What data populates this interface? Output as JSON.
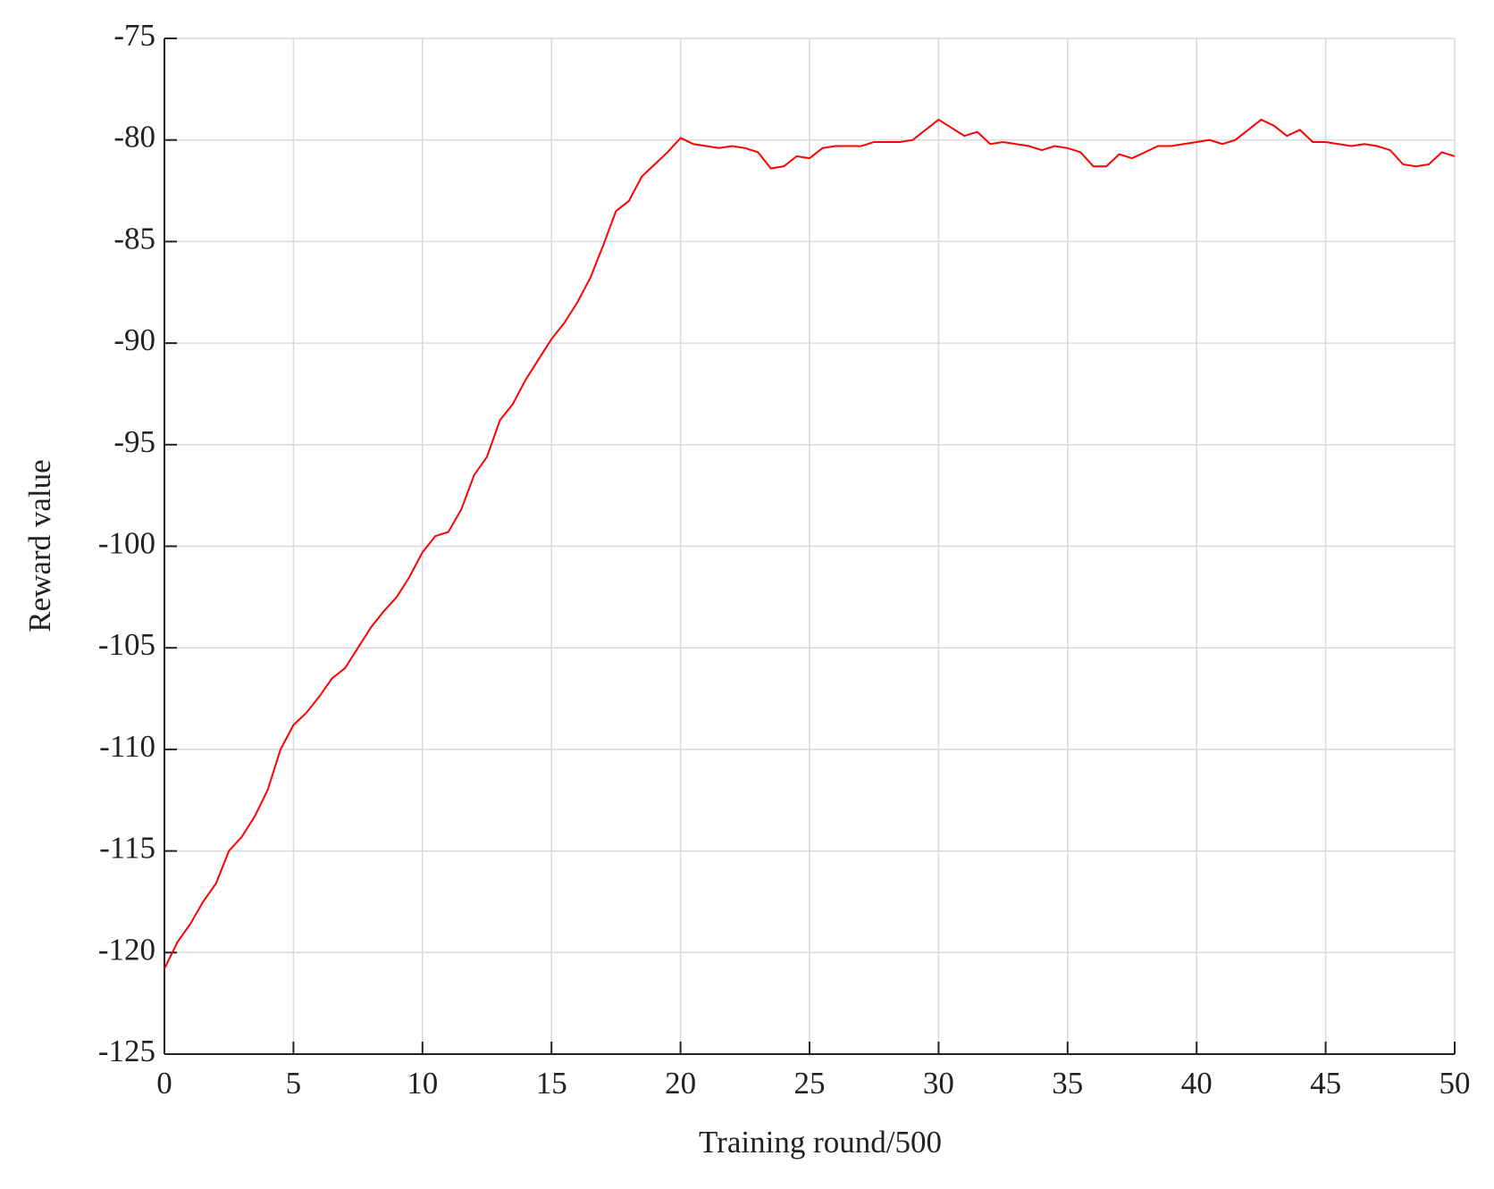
{
  "chart_data": {
    "type": "line",
    "xlabel": "Training round/500",
    "ylabel": "Reward value",
    "x": [
      0,
      0.5,
      1,
      1.5,
      2,
      2.5,
      3,
      3.5,
      4,
      4.5,
      5,
      5.5,
      6,
      6.5,
      7,
      7.5,
      8,
      8.5,
      9,
      9.5,
      10,
      10.5,
      11,
      11.5,
      12,
      12.5,
      13,
      13.5,
      14,
      14.5,
      15,
      15.5,
      16,
      16.5,
      17,
      17.5,
      18,
      18.5,
      19,
      19.5,
      20,
      20.5,
      21,
      21.5,
      22,
      22.5,
      23,
      23.5,
      24,
      24.5,
      25,
      25.5,
      26,
      26.5,
      27,
      27.5,
      28,
      28.5,
      29,
      29.5,
      30,
      30.5,
      31,
      31.5,
      32,
      32.5,
      33,
      33.5,
      34,
      34.5,
      35,
      35.5,
      36,
      36.5,
      37,
      37.5,
      38,
      38.5,
      39,
      39.5,
      40,
      40.5,
      41,
      41.5,
      42,
      42.5,
      43,
      43.5,
      44,
      44.5,
      45,
      45.5,
      46,
      46.5,
      47,
      47.5,
      48,
      48.5,
      49,
      49.5,
      50
    ],
    "series": [
      {
        "color": "#ff0000",
        "values": [
          -120.8,
          -119.5,
          -118.6,
          -117.5,
          -116.6,
          -115,
          -114.3,
          -113.3,
          -112,
          -110,
          -108.8,
          -108.2,
          -107.4,
          -106.5,
          -106,
          -105,
          -104,
          -103.2,
          -102.5,
          -101.5,
          -100.3,
          -99.5,
          -99.3,
          -98.2,
          -96.5,
          -95.6,
          -93.8,
          -93,
          -91.8,
          -90.8,
          -89.8,
          -89,
          -88,
          -86.8,
          -85.2,
          -83.5,
          -83,
          -81.8,
          -81.2,
          -80.6,
          -79.9,
          -80.2,
          -80.3,
          -80.4,
          -80.3,
          -80.4,
          -80.6,
          -81.4,
          -81.3,
          -80.8,
          -80.9,
          -80.4,
          -80.3,
          -80.3,
          -80.3,
          -80.1,
          -80.1,
          -80.1,
          -80.0,
          -79.5,
          -79.0,
          -79.4,
          -79.8,
          -79.6,
          -80.2,
          -80.1,
          -80.2,
          -80.3,
          -80.5,
          -80.3,
          -80.4,
          -80.6,
          -81.3,
          -81.3,
          -80.7,
          -80.9,
          -80.6,
          -80.3,
          -80.3,
          -80.2,
          -80.1,
          -80.0,
          -80.2,
          -80.0,
          -79.5,
          -79.0,
          -79.3,
          -79.8,
          -79.5,
          -80.1,
          -80.1,
          -80.2,
          -80.3,
          -80.2,
          -80.3,
          -80.5,
          -81.2,
          -81.3,
          -81.2,
          -80.6,
          -80.8
        ]
      }
    ],
    "xlim": [
      0,
      50
    ],
    "xticks": [
      0,
      5,
      10,
      15,
      20,
      25,
      30,
      35,
      40,
      45,
      50
    ],
    "ylim": [
      -125,
      -75
    ],
    "yticks": [
      -75,
      -80,
      -85,
      -90,
      -95,
      -100,
      -105,
      -110,
      -115,
      -120,
      -125
    ],
    "grid": true
  }
}
